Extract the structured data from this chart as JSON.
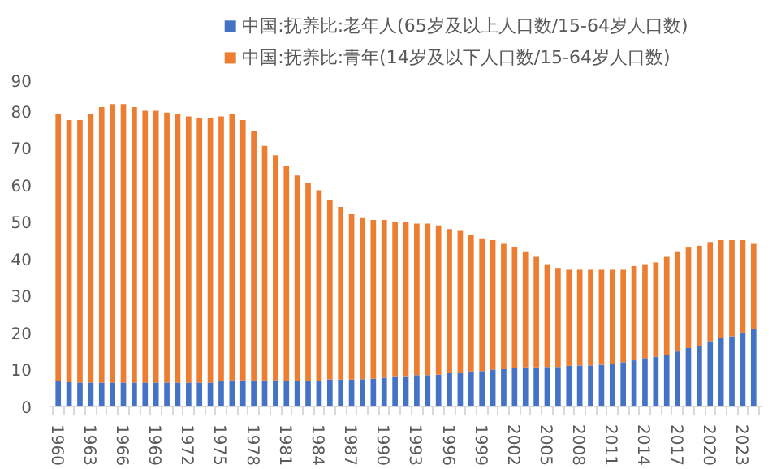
{
  "chart_data": {
    "type": "bar",
    "stacked": true,
    "legend": "top",
    "grid": false,
    "ylim": [
      0,
      90
    ],
    "yticks": [
      0,
      10,
      20,
      30,
      40,
      50,
      60,
      70,
      80,
      90
    ],
    "categories": [
      "1960",
      null,
      null,
      "1963",
      null,
      null,
      "1966",
      null,
      null,
      "1969",
      null,
      null,
      "1972",
      null,
      null,
      "1975",
      null,
      null,
      "1978",
      null,
      null,
      "1981",
      null,
      null,
      "1984",
      null,
      null,
      "1987",
      null,
      null,
      "1990",
      null,
      null,
      "1993",
      null,
      null,
      "1996",
      null,
      null,
      "1999",
      null,
      null,
      "2002",
      null,
      null,
      "2005",
      null,
      null,
      "2008",
      null,
      null,
      "2011",
      null,
      null,
      "2014",
      null,
      null,
      "2017",
      null,
      null,
      "2020",
      null,
      null,
      "2023",
      null
    ],
    "series": [
      {
        "name": "中国:抚养比:老年人(65岁及以上人口数/15-64岁人口数)",
        "color": "#4472c4",
        "values": [
          7.0,
          6.6,
          6.5,
          6.5,
          6.5,
          6.5,
          6.5,
          6.5,
          6.5,
          6.5,
          6.5,
          6.5,
          6.5,
          6.5,
          6.5,
          7.0,
          7.1,
          7.1,
          7.1,
          7.1,
          7.1,
          7.0,
          7.0,
          7.0,
          7.0,
          7.3,
          7.3,
          7.3,
          7.4,
          7.5,
          7.8,
          8.0,
          8.0,
          8.5,
          8.5,
          8.6,
          9.0,
          9.0,
          9.5,
          9.6,
          10.0,
          10.1,
          10.4,
          10.6,
          10.6,
          10.7,
          10.7,
          11.0,
          11.1,
          11.1,
          11.3,
          11.5,
          12.0,
          12.5,
          13.1,
          13.5,
          14.0,
          14.9,
          15.8,
          16.4,
          17.7,
          18.6,
          19.0,
          20.0,
          21.0
        ]
      },
      {
        "name": "中国:抚养比:青年(14岁及以下人口数/15-64岁人口数)",
        "color": "#ed7d31",
        "values": [
          72,
          70.9,
          71,
          72.5,
          74.5,
          75.3,
          75.3,
          74.5,
          73.5,
          73.5,
          73,
          72.5,
          72,
          71.5,
          71.5,
          71.5,
          71.9,
          70.4,
          67.4,
          63.4,
          60.9,
          58,
          55.5,
          53.5,
          51.5,
          48.7,
          46.7,
          44.7,
          43.6,
          43,
          42.7,
          42,
          42,
          41,
          41,
          40.4,
          39,
          38.5,
          37,
          35.9,
          35,
          33.9,
          32.6,
          31.4,
          29.9,
          27.8,
          26.8,
          26,
          25.9,
          25.9,
          25.7,
          25.5,
          25,
          25.5,
          25.4,
          25.5,
          26.5,
          27.1,
          27.2,
          27.1,
          26.8,
          26.4,
          26,
          25,
          23
        ]
      }
    ]
  }
}
